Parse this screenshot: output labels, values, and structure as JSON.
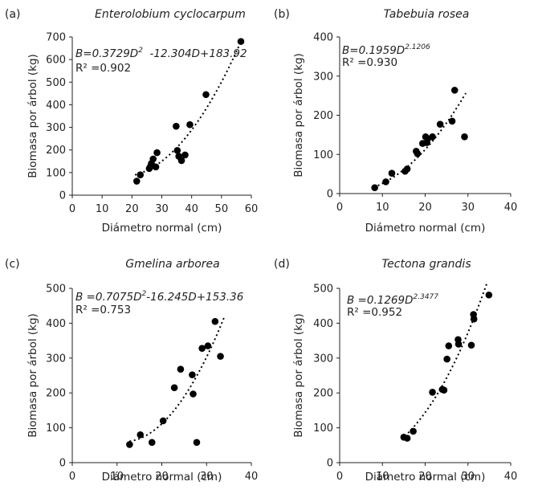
{
  "chart_data": [
    {
      "type": "scatter",
      "panel": "(a)",
      "title": "Enterolobium cyclocarpum",
      "xlabel": "Diámetro normal (cm)",
      "ylabel": "Biomasa por árbol (kg)",
      "xlim": [
        0,
        60
      ],
      "xticks": [
        0,
        10,
        20,
        30,
        40,
        50,
        60
      ],
      "ylim": [
        0,
        700
      ],
      "yticks": [
        0,
        100,
        200,
        300,
        400,
        500,
        600,
        700
      ],
      "grid": false,
      "equation_parts": [
        {
          "text": "B=0.3729D"
        },
        {
          "text": "2",
          "sup": true
        },
        {
          "text": "  -12.304D+183.92"
        }
      ],
      "r2_text": "R² =0.902",
      "trend": {
        "form": "poly2",
        "a": 0.3729,
        "b": -12.304,
        "c": 183.92,
        "xrange": [
          21,
          57
        ]
      },
      "x": [
        21.6,
        22.8,
        25.8,
        26.1,
        26.5,
        27.1,
        28.0,
        28.4,
        34.8,
        35.2,
        35.7,
        36.6,
        37.8,
        39.4,
        44.8,
        56.5
      ],
      "y": [
        62,
        90,
        118,
        125,
        140,
        160,
        125,
        188,
        305,
        198,
        172,
        153,
        178,
        312,
        445,
        680
      ]
    },
    {
      "type": "scatter",
      "panel": "(b)",
      "title": "Tabebuia rosea",
      "xlabel": "Diámetro normal (cm)",
      "ylabel": "Biomasa por árbol (kg)",
      "xlim": [
        0,
        40
      ],
      "xticks": [
        0,
        10,
        20,
        30,
        40
      ],
      "ylim": [
        0,
        400
      ],
      "yticks": [
        0,
        100,
        200,
        300,
        400
      ],
      "grid": false,
      "equation_parts": [
        {
          "text": "B=0.1959D"
        },
        {
          "text": "2.1206",
          "sup": true
        }
      ],
      "r2_text": "R² =0.930",
      "trend": {
        "form": "power",
        "a": 0.1959,
        "b": 2.1206,
        "xrange": [
          8,
          29.5
        ]
      },
      "x": [
        8.2,
        10.8,
        12.2,
        15.3,
        15.8,
        17.9,
        18.2,
        19.4,
        20.1,
        20.4,
        20.6,
        21.7,
        23.5,
        26.3,
        26.9,
        29.2
      ],
      "y": [
        15,
        30,
        52,
        57,
        63,
        108,
        102,
        128,
        145,
        130,
        140,
        145,
        177,
        185,
        264,
        145
      ]
    },
    {
      "type": "scatter",
      "panel": "(c)",
      "title": "Gmelina arborea",
      "xlabel": "Diámetro normal (cm)",
      "ylabel": "Biomasa por árbol (kg)",
      "xlim": [
        0,
        40
      ],
      "xticks": [
        0,
        10,
        20,
        30,
        40
      ],
      "ylim": [
        0,
        500
      ],
      "yticks": [
        0,
        100,
        200,
        300,
        400,
        500
      ],
      "grid": false,
      "equation_parts": [
        {
          "text": "B =0.7075D"
        },
        {
          "text": "2",
          "sup": true
        },
        {
          "text": "-16.245D+153.36"
        }
      ],
      "r2_text": "R² =0.753",
      "trend": {
        "form": "poly2",
        "a": 0.7075,
        "b": -16.245,
        "c": 153.36,
        "xrange": [
          12.8,
          34
        ]
      },
      "x": [
        12.8,
        15.2,
        17.8,
        20.3,
        22.8,
        24.2,
        26.8,
        27.0,
        27.8,
        29.0,
        30.3,
        31.9,
        33.1
      ],
      "y": [
        52,
        80,
        58,
        120,
        215,
        268,
        252,
        197,
        58,
        328,
        335,
        405,
        305
      ]
    },
    {
      "type": "scatter",
      "panel": "(d)",
      "title": "Tectona grandis",
      "xlabel": "Diámetro normal (cm)",
      "ylabel": "Biomasa por árbol (kg)",
      "xlim": [
        0,
        40
      ],
      "xticks": [
        0,
        10,
        20,
        30,
        40
      ],
      "ylim": [
        0,
        500
      ],
      "yticks": [
        0,
        100,
        200,
        300,
        400,
        500
      ],
      "grid": false,
      "equation_parts": [
        {
          "text": "B =0.1269D"
        },
        {
          "text": "2.3477",
          "sup": true
        }
      ],
      "r2_text": "R² =0.952",
      "trend": {
        "form": "power",
        "a": 0.1269,
        "b": 2.3477,
        "xrange": [
          14.5,
          34.5
        ]
      },
      "x": [
        15.0,
        15.8,
        17.2,
        21.7,
        24.0,
        24.4,
        25.1,
        25.5,
        27.7,
        27.8,
        30.8,
        31.3,
        31.4,
        34.9
      ],
      "y": [
        73,
        70,
        90,
        202,
        210,
        208,
        297,
        335,
        353,
        340,
        337,
        425,
        412,
        481
      ]
    }
  ]
}
